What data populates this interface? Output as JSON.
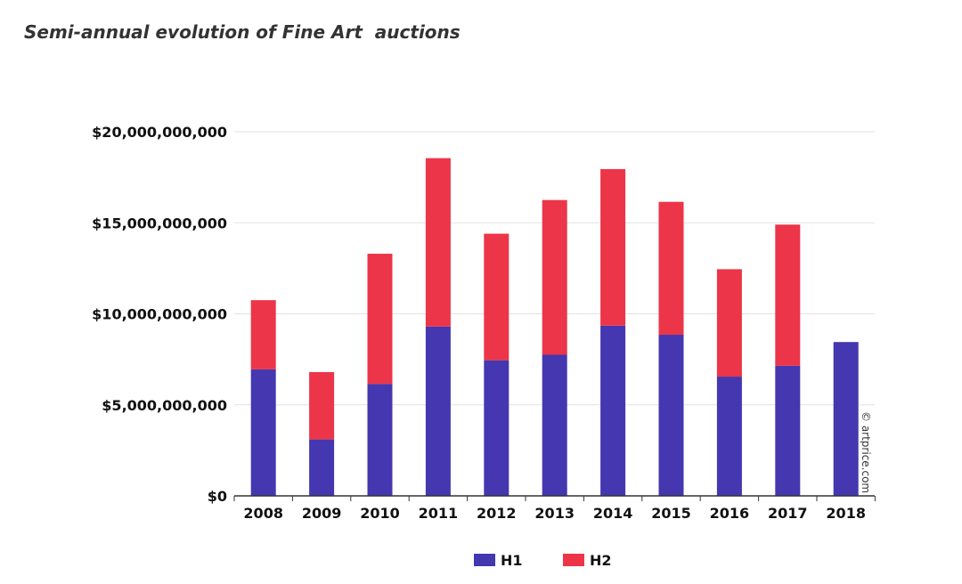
{
  "chart_data": {
    "type": "bar",
    "stacked": true,
    "title": "Semi-annual evolution of Fine Art  auctions",
    "xlabel": "",
    "ylabel": "",
    "categories": [
      "2008",
      "2009",
      "2010",
      "2011",
      "2012",
      "2013",
      "2014",
      "2015",
      "2016",
      "2017",
      "2018"
    ],
    "series": [
      {
        "name": "H1",
        "color": "#4437b0",
        "values": [
          6950000000,
          3100000000,
          6150000000,
          9300000000,
          7450000000,
          7750000000,
          9350000000,
          8850000000,
          6550000000,
          7150000000,
          8450000000
        ]
      },
      {
        "name": "H2",
        "color": "#ec3548",
        "values": [
          3800000000,
          3700000000,
          7150000000,
          9250000000,
          6950000000,
          8500000000,
          8600000000,
          7300000000,
          5900000000,
          7750000000,
          0
        ]
      }
    ],
    "ylim": [
      0,
      20000000000
    ],
    "yticks": [
      0,
      5000000000,
      10000000000,
      15000000000,
      20000000000
    ],
    "ytick_labels": [
      "$0",
      "$5,000,000,000",
      "$10,000,000,000",
      "$15,000,000,000",
      "$20,000,000,000"
    ],
    "grid": true,
    "legend_position": "bottom-center",
    "credit": "© artprice.com"
  }
}
